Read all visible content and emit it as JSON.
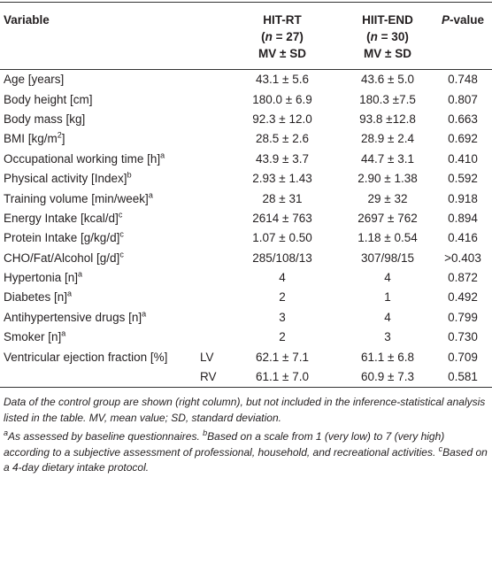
{
  "header": {
    "variable": "Variable",
    "groups": [
      {
        "name": "HIT-RT",
        "n_open": "(",
        "n": "n",
        "n_close": " = 27)",
        "stat": "MV ± SD"
      },
      {
        "name": "HIIT-END",
        "n_open": "(",
        "n": "n",
        "n_close": " = 30)",
        "stat": "MV ± SD"
      }
    ],
    "p_italic": "P",
    "p_rest": "-value"
  },
  "rows": [
    {
      "label": "Age [years]",
      "hit_rt": "43.1 ± 5.6",
      "hiit_end": "43.6 ± 5.0",
      "p": "0.748"
    },
    {
      "label": "Body height [cm]",
      "hit_rt": "180.0 ± 6.9",
      "hiit_end": "180.3 ±7.5",
      "p": "0.807"
    },
    {
      "label": "Body mass [kg]",
      "hit_rt": "92.3 ± 12.0",
      "hiit_end": "93.8 ±12.8",
      "p": "0.663"
    },
    {
      "label": "BMI [kg/m",
      "sup": "2",
      "label_end": "]",
      "hit_rt": "28.5 ± 2.6",
      "hiit_end": "28.9 ± 2.4",
      "p": "0.692"
    },
    {
      "label": "Occupational working time [h]",
      "sup": "a",
      "hit_rt": "43.9 ± 3.7",
      "hiit_end": "44.7 ± 3.1",
      "p": "0.410"
    },
    {
      "label": "Physical activity [Index]",
      "sup": "b",
      "hit_rt": "2.93 ± 1.43",
      "hiit_end": "2.90 ± 1.38",
      "p": "0.592"
    },
    {
      "label": "Training volume [min/week]",
      "sup": "a",
      "hit_rt": "28 ± 31",
      "hiit_end": "29 ± 32",
      "p": "0.918"
    },
    {
      "label": "Energy Intake [kcal/d]",
      "sup": "c",
      "hit_rt": "2614 ± 763",
      "hiit_end": "2697 ± 762",
      "p": "0.894"
    },
    {
      "label": "Protein Intake [g/kg/d]",
      "sup": "c",
      "hit_rt": "1.07 ± 0.50",
      "hiit_end": "1.18 ± 0.54",
      "p": "0.416"
    },
    {
      "label": "CHO/Fat/Alcohol [g/d]",
      "sup": "c",
      "hit_rt": "285/108/13",
      "hiit_end": "307/98/15",
      "p": ">0.403"
    },
    {
      "label": "Hypertonia [n]",
      "sup": "a",
      "hit_rt": "4",
      "hiit_end": "4",
      "p": "0.872"
    },
    {
      "label": "Diabetes [n]",
      "sup": "a",
      "hit_rt": "2",
      "hiit_end": "1",
      "p": "0.492"
    },
    {
      "label": "Antihypertensive drugs [n]",
      "sup": "a",
      "hit_rt": "3",
      "hiit_end": "4",
      "p": "0.799"
    },
    {
      "label": "Smoker [n]",
      "sup": "a",
      "hit_rt": "2",
      "hiit_end": "3",
      "p": "0.730"
    },
    {
      "label": "Ventricular ejection fraction [%]",
      "sub": "LV",
      "hit_rt": "62.1 ± 7.1",
      "hiit_end": "61.1 ± 6.8",
      "p": "0.709"
    },
    {
      "sub": "RV",
      "hit_rt": "61.1 ± 7.0",
      "hiit_end": "60.9 ± 7.3",
      "p": "0.581"
    }
  ],
  "footnotes": {
    "note": "Data of the control group are shown (right column), but not included in the inference-statistical analysis listed in the table. MV, mean value; SD, standard deviation.",
    "defs": [
      {
        "mark": "a",
        "text": "As assessed by baseline questionnaires. "
      },
      {
        "mark": "b",
        "text": "Based on a scale from 1 (very low) to 7 (very high) according to a subjective assessment of professional, household, and recreational activities. "
      },
      {
        "mark": "c",
        "text": "Based on a 4-day dietary intake protocol."
      }
    ]
  }
}
